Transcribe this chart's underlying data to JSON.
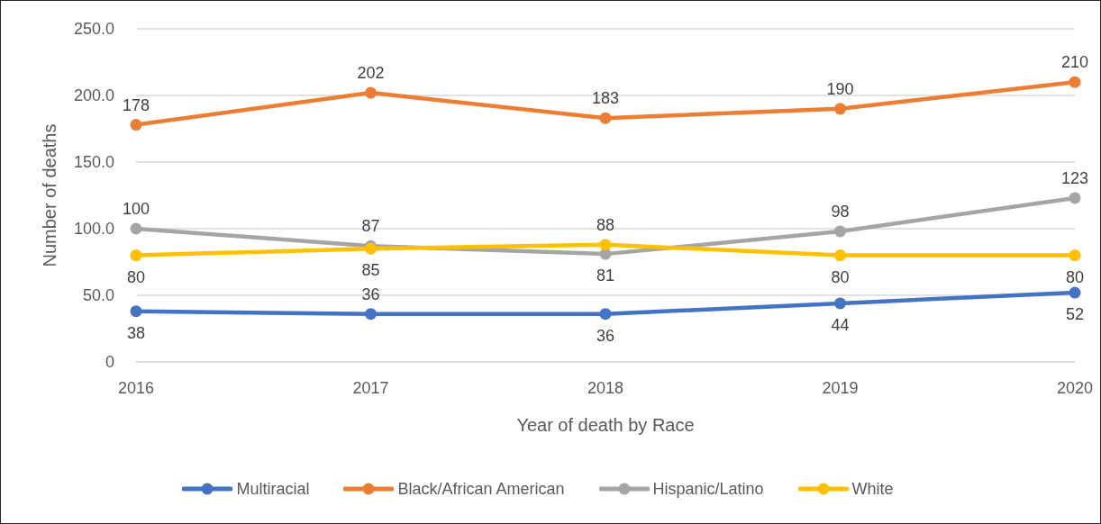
{
  "chart_data": {
    "type": "line",
    "xlabel": "Year of death by Race",
    "ylabel": "Number of deaths",
    "categories": [
      "2016",
      "2017",
      "2018",
      "2019",
      "2020"
    ],
    "series": [
      {
        "name": "Multiracial",
        "color": "#4472c4",
        "values": [
          38,
          36,
          36,
          44,
          52
        ]
      },
      {
        "name": "Black/African American",
        "color": "#ed7d31",
        "values": [
          178,
          202,
          183,
          190,
          210
        ]
      },
      {
        "name": "Hispanic/Latino",
        "color": "#a5a5a5",
        "values": [
          100,
          87,
          81,
          98,
          123
        ]
      },
      {
        "name": "White",
        "color": "#ffc000",
        "values": [
          80,
          85,
          88,
          80,
          80
        ]
      }
    ],
    "ylim": [
      0,
      250
    ],
    "yticks": [
      0,
      {
        "value": 50,
        "label": "50.0"
      },
      {
        "value": 100,
        "label": "100.0"
      },
      {
        "value": 150,
        "label": "150.0"
      },
      {
        "value": 200,
        "label": "200.0"
      },
      {
        "value": 250,
        "label": "250.0"
      }
    ],
    "grid": "y",
    "legend": "bottom",
    "marker": "circle",
    "line_style": "solid",
    "data_labels": true
  }
}
